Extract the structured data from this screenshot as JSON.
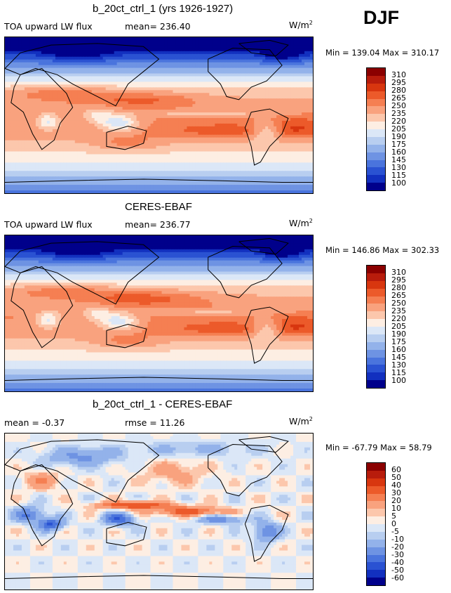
{
  "season": "DJF",
  "panels": [
    {
      "id": "model",
      "title": "b_20ct_ctrl_1 (yrs 1926-1927)",
      "left_label": "TOA upward LW flux",
      "mid_label": "mean= 236.40",
      "units": "W/m",
      "units_sup": "2",
      "minmax": "Min = 139.04  Max = 310.17",
      "levels": [
        "310",
        "295",
        "280",
        "265",
        "250",
        "235",
        "220",
        "205",
        "190",
        "175",
        "160",
        "145",
        "130",
        "115",
        "100"
      ]
    },
    {
      "id": "obs",
      "title": "CERES-EBAF",
      "left_label": "TOA upward LW flux",
      "mid_label": "mean= 236.77",
      "units": "W/m",
      "units_sup": "2",
      "minmax": "Min = 146.86  Max = 302.33",
      "levels": [
        "310",
        "295",
        "280",
        "265",
        "250",
        "235",
        "220",
        "205",
        "190",
        "175",
        "160",
        "145",
        "130",
        "115",
        "100"
      ]
    },
    {
      "id": "diff",
      "title": "b_20ct_ctrl_1 - CERES-EBAF",
      "left_label": "mean =  -0.37",
      "mid_label": "rmse =  11.26",
      "units": "W/m",
      "units_sup": "2",
      "minmax": "Min = -67.79  Max =  58.79",
      "levels": [
        "60",
        "50",
        "40",
        "30",
        "20",
        "10",
        "5",
        "0",
        "-5",
        "-10",
        "-20",
        "-30",
        "-40",
        "-50",
        "-60"
      ]
    }
  ],
  "colors": {
    "palette": [
      "#8b0000",
      "#b81c0c",
      "#d8360f",
      "#ec5a2a",
      "#f57f52",
      "#f9a27e",
      "#fcc7ac",
      "#fdeee3",
      "#dbe7f7",
      "#b8cef0",
      "#93b2ea",
      "#6e93e3",
      "#4a74dd",
      "#2a52d2",
      "#1230bf",
      "#00008b"
    ]
  },
  "chart_data": [
    {
      "type": "heatmap",
      "title": "b_20ct_ctrl_1 (yrs 1926-1927)",
      "variable": "TOA upward LW flux",
      "units": "W/m2",
      "mean": 236.4,
      "min": 139.04,
      "max": 310.17,
      "contour_levels": [
        100,
        115,
        130,
        145,
        160,
        175,
        190,
        205,
        220,
        235,
        250,
        265,
        280,
        295,
        310
      ]
    },
    {
      "type": "heatmap",
      "title": "CERES-EBAF",
      "variable": "TOA upward LW flux",
      "units": "W/m2",
      "mean": 236.77,
      "min": 146.86,
      "max": 302.33,
      "contour_levels": [
        100,
        115,
        130,
        145,
        160,
        175,
        190,
        205,
        220,
        235,
        250,
        265,
        280,
        295,
        310
      ]
    },
    {
      "type": "heatmap",
      "title": "b_20ct_ctrl_1 - CERES-EBAF",
      "units": "W/m2",
      "mean": -0.37,
      "rmse": 11.26,
      "min": -67.79,
      "max": 58.79,
      "contour_levels": [
        -60,
        -50,
        -40,
        -30,
        -20,
        -10,
        -5,
        0,
        5,
        10,
        20,
        30,
        40,
        50,
        60
      ]
    }
  ]
}
